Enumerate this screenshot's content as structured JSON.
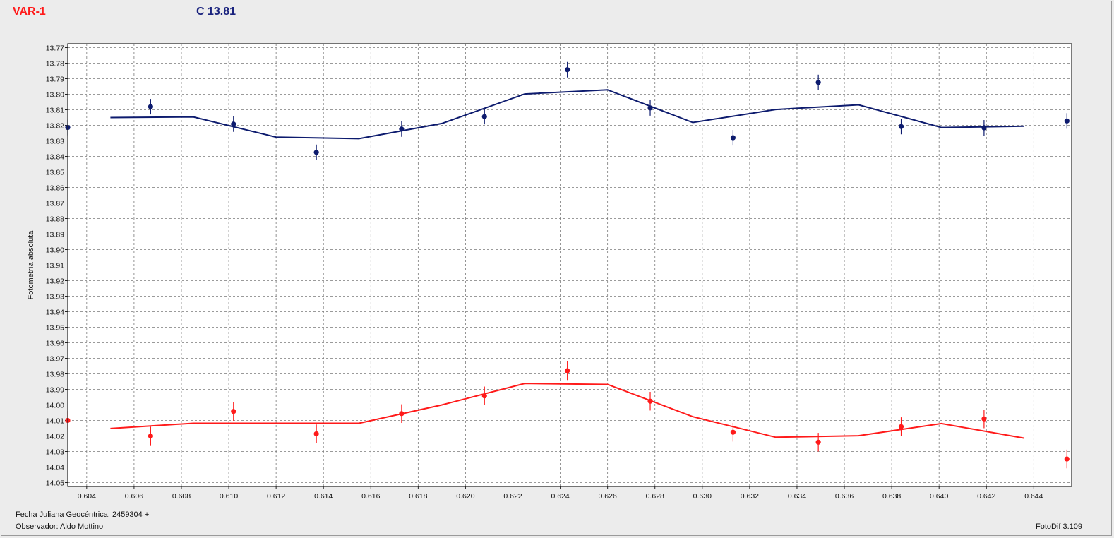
{
  "header": {
    "variable_label": "VAR-1",
    "comparison_label": "C 13.81"
  },
  "footer": {
    "julian_date": "Fecha Juliana Geocéntrica: 2459304 +",
    "observer": "Observador: Aldo Mottino",
    "software": "FotoDif 3.109"
  },
  "colors": {
    "var": "#ff1a1a",
    "comp": "#0d1b6e",
    "grid": "#7a7a7a",
    "plot_bg": "#ffffff"
  },
  "chart_data": {
    "type": "scatter",
    "ylabel": "Fotometría absoluta",
    "xlabel": "",
    "xlim": [
      0.6032,
      0.6456
    ],
    "ylim": [
      13.7675,
      14.0525
    ],
    "y_inverted": true,
    "grid": true,
    "x_ticks": [
      "0.604",
      "0.606",
      "0.608",
      "0.610",
      "0.612",
      "0.614",
      "0.616",
      "0.618",
      "0.620",
      "0.622",
      "0.624",
      "0.626",
      "0.628",
      "0.630",
      "0.632",
      "0.634",
      "0.636",
      "0.638",
      "0.640",
      "0.642",
      "0.644"
    ],
    "y_ticks": [
      "13.77",
      "13.78",
      "13.79",
      "13.80",
      "13.81",
      "13.82",
      "13.83",
      "13.84",
      "13.85",
      "13.86",
      "13.87",
      "13.88",
      "13.89",
      "13.90",
      "13.91",
      "13.92",
      "13.93",
      "13.94",
      "13.95",
      "13.96",
      "13.97",
      "13.98",
      "13.99",
      "14.00",
      "14.01",
      "14.02",
      "14.03",
      "14.04",
      "14.05"
    ],
    "series": [
      {
        "key": "comp",
        "points": [
          {
            "x": 0.6032,
            "y": 13.8214,
            "err": 0.005
          },
          {
            "x": 0.6067,
            "y": 13.808,
            "err": 0.005
          },
          {
            "x": 0.6102,
            "y": 13.8192,
            "err": 0.005
          },
          {
            "x": 0.6137,
            "y": 13.8374,
            "err": 0.005
          },
          {
            "x": 0.6173,
            "y": 13.8224,
            "err": 0.005
          },
          {
            "x": 0.6208,
            "y": 13.8144,
            "err": 0.005
          },
          {
            "x": 0.6243,
            "y": 13.7842,
            "err": 0.005
          },
          {
            "x": 0.6278,
            "y": 13.8088,
            "err": 0.005
          },
          {
            "x": 0.6313,
            "y": 13.828,
            "err": 0.005
          },
          {
            "x": 0.6349,
            "y": 13.7924,
            "err": 0.005
          },
          {
            "x": 0.6384,
            "y": 13.8208,
            "err": 0.005
          },
          {
            "x": 0.6419,
            "y": 13.8216,
            "err": 0.005
          },
          {
            "x": 0.6454,
            "y": 13.8172,
            "err": 0.005
          }
        ],
        "fit": [
          {
            "x": 0.605,
            "y": 13.815
          },
          {
            "x": 0.6085,
            "y": 13.8146
          },
          {
            "x": 0.612,
            "y": 13.8276
          },
          {
            "x": 0.6155,
            "y": 13.8286
          },
          {
            "x": 0.619,
            "y": 13.8188
          },
          {
            "x": 0.6225,
            "y": 13.7998
          },
          {
            "x": 0.626,
            "y": 13.7972
          },
          {
            "x": 0.6296,
            "y": 13.8182
          },
          {
            "x": 0.6331,
            "y": 13.8098
          },
          {
            "x": 0.6366,
            "y": 13.8068
          },
          {
            "x": 0.6401,
            "y": 13.8214
          },
          {
            "x": 0.6436,
            "y": 13.8206
          }
        ]
      },
      {
        "key": "var",
        "points": [
          {
            "x": 0.6032,
            "y": 14.01,
            "err": 0.006
          },
          {
            "x": 0.6067,
            "y": 14.02,
            "err": 0.006
          },
          {
            "x": 0.6102,
            "y": 14.0042,
            "err": 0.006
          },
          {
            "x": 0.6137,
            "y": 14.0186,
            "err": 0.006
          },
          {
            "x": 0.6173,
            "y": 14.0056,
            "err": 0.006
          },
          {
            "x": 0.6208,
            "y": 13.9942,
            "err": 0.006
          },
          {
            "x": 0.6243,
            "y": 13.978,
            "err": 0.006
          },
          {
            "x": 0.6278,
            "y": 13.9976,
            "err": 0.006
          },
          {
            "x": 0.6313,
            "y": 14.0176,
            "err": 0.006
          },
          {
            "x": 0.6349,
            "y": 14.024,
            "err": 0.006
          },
          {
            "x": 0.6384,
            "y": 14.014,
            "err": 0.006
          },
          {
            "x": 0.6419,
            "y": 14.009,
            "err": 0.006
          },
          {
            "x": 0.6454,
            "y": 14.0348,
            "err": 0.006
          }
        ],
        "fit": [
          {
            "x": 0.605,
            "y": 14.0152
          },
          {
            "x": 0.6085,
            "y": 14.0118
          },
          {
            "x": 0.612,
            "y": 14.0118
          },
          {
            "x": 0.6155,
            "y": 14.0118
          },
          {
            "x": 0.619,
            "y": 14.0
          },
          {
            "x": 0.6225,
            "y": 13.9862
          },
          {
            "x": 0.626,
            "y": 13.9868
          },
          {
            "x": 0.6296,
            "y": 14.0076
          },
          {
            "x": 0.6331,
            "y": 14.0208
          },
          {
            "x": 0.6366,
            "y": 14.0198
          },
          {
            "x": 0.6401,
            "y": 14.012
          },
          {
            "x": 0.6436,
            "y": 14.0214
          }
        ]
      }
    ]
  }
}
